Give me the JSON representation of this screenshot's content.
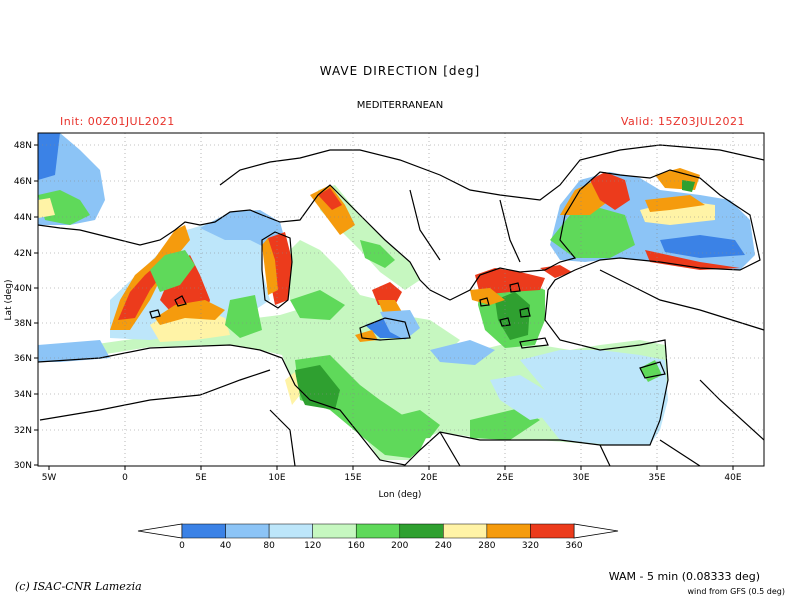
{
  "title": "WAVE DIRECTION [deg]",
  "region": "MEDITERRANEAN",
  "init_label": "Init: 00Z01JUL2021",
  "valid_label": "Valid: 15Z03JUL2021",
  "x_axis_label": "Lon (deg)",
  "y_axis_label": "Lat (deg)",
  "x_ticks": [
    "5W",
    "0",
    "5E",
    "10E",
    "15E",
    "20E",
    "25E",
    "30E",
    "35E",
    "40E"
  ],
  "y_ticks": [
    "48N",
    "46N",
    "44N",
    "42N",
    "40N",
    "38N",
    "36N",
    "34N",
    "32N",
    "30N"
  ],
  "colorbar": {
    "labels": [
      "0",
      "40",
      "80",
      "120",
      "160",
      "200",
      "240",
      "280",
      "320",
      "360"
    ],
    "colors": [
      "#3b82e6",
      "#8cc4f6",
      "#bde6fa",
      "#c6f7c0",
      "#5fd95a",
      "#2fa030",
      "#fff3a6",
      "#f59b0d",
      "#ec3b1c"
    ]
  },
  "credit": "(c) ISAC-CNR Lamezia",
  "model_info": "WAM - 5 min (0.08333 deg)",
  "wind_info": "wind from GFS (0.5 deg)"
}
